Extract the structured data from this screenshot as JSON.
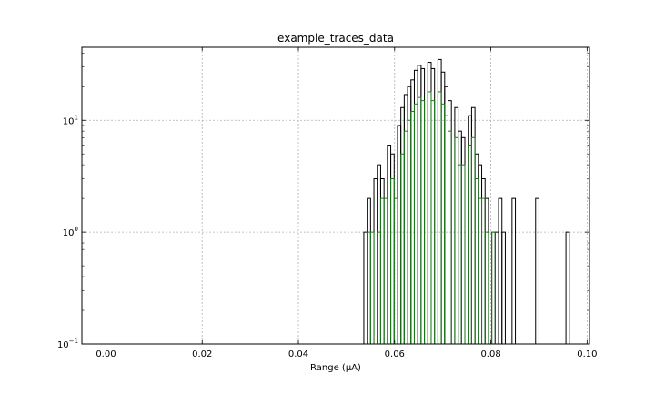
{
  "chart_data": {
    "type": "histogram",
    "title": "example_traces_data",
    "xlabel": "Range (μA)",
    "ylabel": "",
    "xlim": [
      -0.005,
      0.1005
    ],
    "ylim": [
      0.1,
      45
    ],
    "yscale": "log",
    "grid": true,
    "grid_style": "dashed",
    "bin_width": 0.0007,
    "xticks": [
      {
        "value": 0.0,
        "label": "0.00"
      },
      {
        "value": 0.02,
        "label": "0.02"
      },
      {
        "value": 0.04,
        "label": "0.04"
      },
      {
        "value": 0.06,
        "label": "0.06"
      },
      {
        "value": 0.08,
        "label": "0.08"
      },
      {
        "value": 0.1,
        "label": "0.10"
      }
    ],
    "yticks": [
      {
        "value": 0.1,
        "base": "10",
        "exp": "−1"
      },
      {
        "value": 1,
        "base": "10",
        "exp": "0"
      },
      {
        "value": 10,
        "base": "10",
        "exp": "1"
      }
    ],
    "series": [
      {
        "color": "#000000",
        "x": [
          0.0536,
          0.0543,
          0.055,
          0.0557,
          0.0564,
          0.0571,
          0.0578,
          0.0585,
          0.0592,
          0.0599,
          0.0606,
          0.0613,
          0.062,
          0.0627,
          0.0634,
          0.0641,
          0.0648,
          0.0655,
          0.0662,
          0.0669,
          0.0676,
          0.0683,
          0.069,
          0.0697,
          0.0704,
          0.0711,
          0.0718,
          0.0725,
          0.0732,
          0.0739,
          0.0746,
          0.0753,
          0.076,
          0.0767,
          0.0774,
          0.0781,
          0.0788,
          0.0795,
          0.0802,
          0.0809,
          0.0816,
          0.0823,
          0.083,
          0.0837,
          0.0844,
          0.0851,
          0.0858,
          0.0865,
          0.0872,
          0.0879,
          0.0886,
          0.0893,
          0.09,
          0.0907,
          0.0914,
          0.0921,
          0.0928,
          0.0935,
          0.0942,
          0.0949,
          0.0956
        ],
        "counts": [
          1,
          2,
          0,
          3,
          4,
          3,
          0,
          6,
          5,
          0,
          9,
          13,
          17,
          20,
          23,
          28,
          31,
          29,
          0,
          33,
          29,
          0,
          35,
          27,
          20,
          15,
          0,
          13,
          8,
          7,
          0,
          11,
          13,
          5,
          4,
          3,
          2,
          0,
          1,
          1,
          2,
          1,
          0,
          0,
          2,
          0,
          0,
          0,
          0,
          0,
          0,
          2,
          0,
          0,
          0,
          0,
          0,
          0,
          0,
          0,
          1
        ]
      },
      {
        "color": "#1a7a1a",
        "x": [
          0.0543,
          0.055,
          0.0557,
          0.0564,
          0.0571,
          0.0578,
          0.0585,
          0.0592,
          0.0599,
          0.0606,
          0.0613,
          0.062,
          0.0627,
          0.0634,
          0.0641,
          0.0648,
          0.0655,
          0.0662,
          0.0669,
          0.0676,
          0.0683,
          0.069,
          0.0697,
          0.0704,
          0.0711,
          0.0718,
          0.0725,
          0.0732,
          0.0739,
          0.0746,
          0.0753,
          0.076,
          0.0767,
          0.0774,
          0.0781,
          0.0788,
          0.0795,
          0.0802,
          0.0809,
          0.0816
        ],
        "counts": [
          1,
          1,
          0,
          1,
          2,
          2,
          0,
          3,
          2,
          0,
          5,
          8,
          10,
          12,
          14,
          16,
          15,
          0,
          18,
          15,
          0,
          18,
          14,
          11,
          8,
          0,
          7,
          4,
          4,
          0,
          6,
          7,
          3,
          2,
          2,
          1,
          0,
          1,
          0,
          0
        ]
      }
    ]
  }
}
